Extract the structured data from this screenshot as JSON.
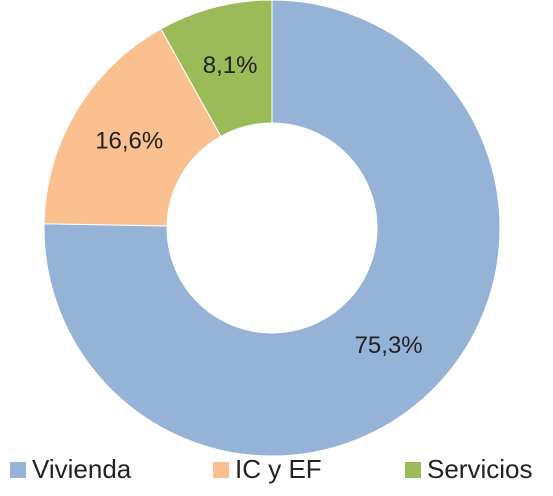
{
  "chart_data": {
    "type": "donut",
    "categories": [
      "Vivienda",
      "IC y EF",
      "Servicios"
    ],
    "values": [
      75.3,
      16.6,
      8.1
    ],
    "value_labels": [
      "75,3%",
      "16,6%",
      "8,1%"
    ],
    "colors": [
      "#95b3d7",
      "#fac090",
      "#9bbb59"
    ],
    "legend": "bottom"
  }
}
